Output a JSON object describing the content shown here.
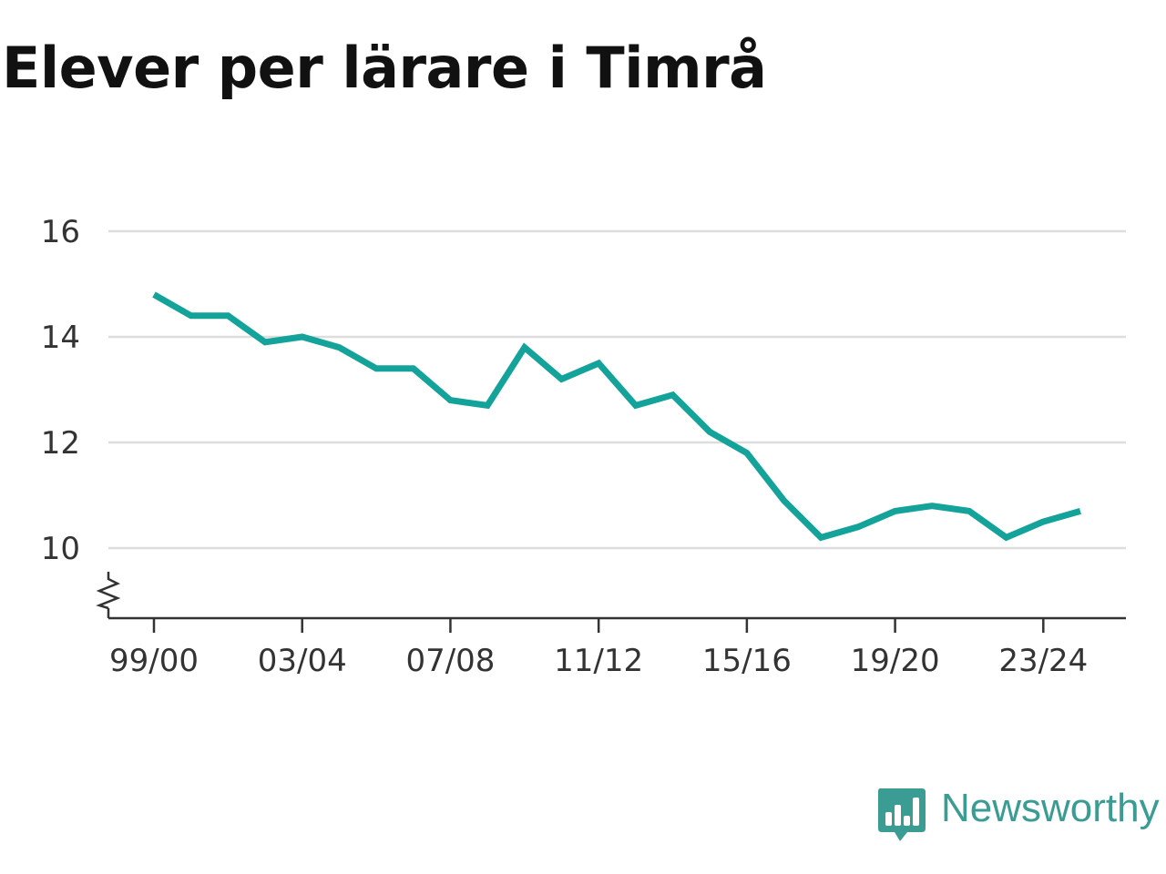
{
  "brand": {
    "name": "Newsworthy",
    "color": "#3a9c93",
    "icon": "chat-bar-chart-icon"
  },
  "chart_data": {
    "type": "line",
    "title": "Elever per lärare i Timrå",
    "xlabel": "",
    "ylabel": "",
    "ylim": [
      8.7,
      16
    ],
    "y_ticks": [
      10,
      12,
      14,
      16
    ],
    "y_axis_break": true,
    "grid": true,
    "line_color": "#14a39a",
    "x": [
      "99/00",
      "00/01",
      "01/02",
      "02/03",
      "03/04",
      "04/05",
      "05/06",
      "06/07",
      "07/08",
      "08/09",
      "09/10",
      "10/11",
      "11/12",
      "12/13",
      "13/14",
      "14/15",
      "15/16",
      "16/17",
      "17/18",
      "18/19",
      "19/20",
      "20/21",
      "21/22",
      "22/23",
      "23/24",
      "24/25"
    ],
    "x_tick_labels": [
      "99/00",
      "03/04",
      "07/08",
      "11/12",
      "15/16",
      "19/20",
      "23/24"
    ],
    "series": [
      {
        "values": [
          14.8,
          14.4,
          14.4,
          13.9,
          14.0,
          13.8,
          13.4,
          13.4,
          12.8,
          12.7,
          13.8,
          13.2,
          13.5,
          12.7,
          12.9,
          12.2,
          11.8,
          10.9,
          10.2,
          10.4,
          10.7,
          10.8,
          10.7,
          10.2,
          10.5,
          10.7
        ]
      }
    ]
  }
}
